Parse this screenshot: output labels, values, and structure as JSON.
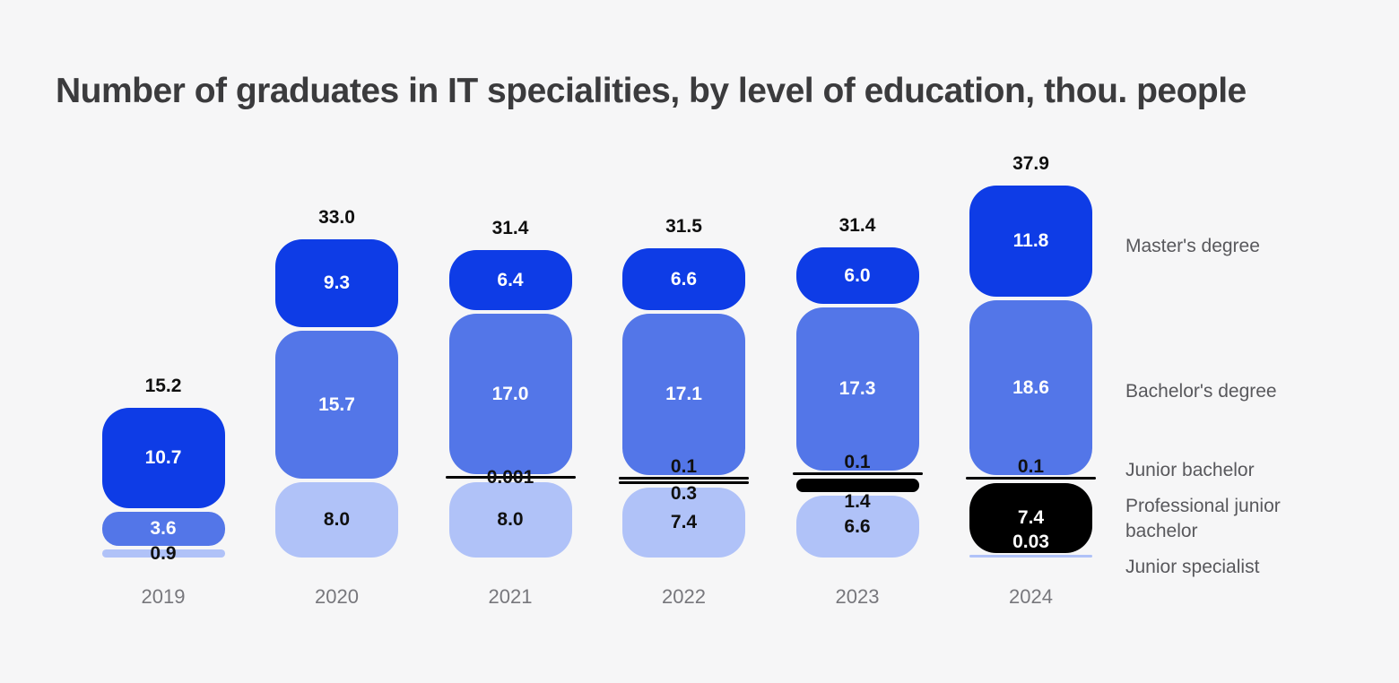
{
  "title": "Number of graduates in IT specialities, by level of education, thou. people",
  "chart_data": {
    "type": "bar",
    "stacked": true,
    "orientation": "vertical",
    "unit": "thou. people",
    "legend_position": "right",
    "axes": "none (data labels only)",
    "categories": [
      "2019",
      "2020",
      "2021",
      "2022",
      "2023",
      "2024"
    ],
    "totals": [
      "15.2",
      "33.0",
      "31.4",
      "31.5",
      "31.4",
      "37.9"
    ],
    "series": [
      {
        "name": "Master's degree",
        "key": "masters",
        "color": "#0e3ce6",
        "label_inside_color": "#ffffff",
        "values": [
          10.7,
          9.3,
          6.4,
          6.6,
          6.0,
          11.8
        ],
        "labels": [
          "10.7",
          "9.3",
          "6.4",
          "6.6",
          "6.0",
          "11.8"
        ]
      },
      {
        "name": "Bachelor's degree",
        "key": "bachelors",
        "color": "#5376e8",
        "label_inside_color": "#ffffff",
        "values": [
          3.6,
          15.7,
          17.0,
          17.1,
          17.3,
          18.6
        ],
        "labels": [
          "3.6",
          "15.7",
          "17.0",
          "17.1",
          "17.3",
          "18.6"
        ]
      },
      {
        "name": "Junior bachelor",
        "key": "junior_bachelor",
        "color": "#000000",
        "label_inside_color": "#101010",
        "values": [
          null,
          null,
          null,
          0.1,
          0.1,
          0.1
        ],
        "labels": [
          null,
          null,
          null,
          "0.1",
          "0.1",
          "0.1"
        ]
      },
      {
        "name": "Professional junior bachelor",
        "key": "professional_junior_bachelor",
        "color": "#000000",
        "label_inside_color": "#ffffff",
        "values": [
          null,
          null,
          0.001,
          0.3,
          1.4,
          7.4
        ],
        "labels": [
          null,
          null,
          "0.001",
          "0.3",
          "1.4",
          "7.4"
        ]
      },
      {
        "name": "Junior specialist",
        "key": "junior_specialist",
        "color": "#b0c2f8",
        "label_inside_color": "#101010",
        "values": [
          0.9,
          8.0,
          8.0,
          7.4,
          6.6,
          0.03
        ],
        "labels": [
          "0.9",
          "8.0",
          "8.0",
          "7.4",
          "6.6",
          "0.03"
        ]
      }
    ]
  },
  "colors": {
    "background": "#f6f6f7",
    "title_text": "#3b3b3d",
    "value_text_dark": "#101010",
    "value_text_light": "#ffffff",
    "year_text": "#77777c",
    "legend_text": "#58585c"
  }
}
